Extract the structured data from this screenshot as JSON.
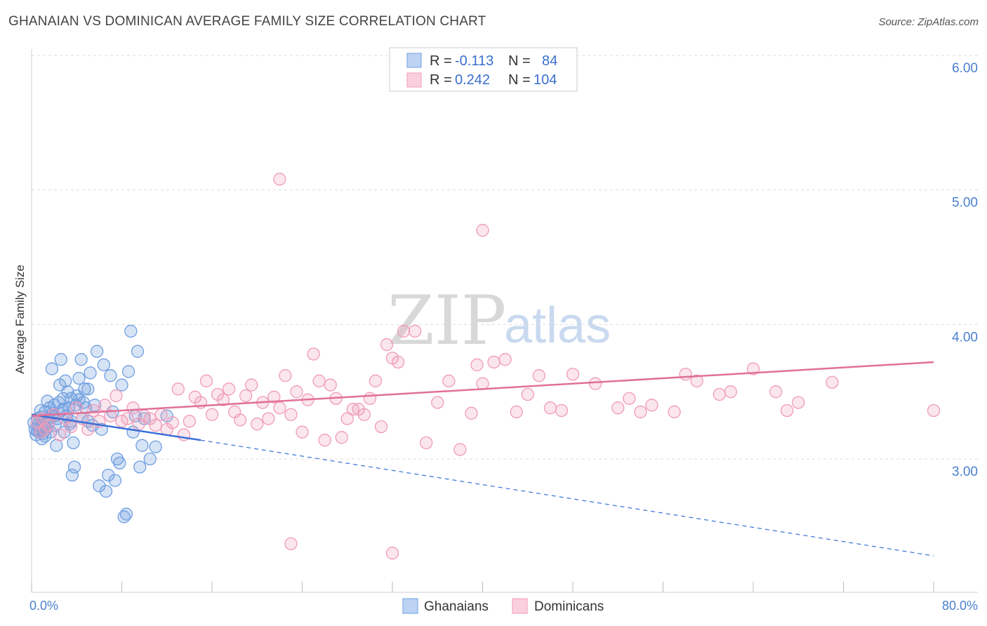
{
  "title": "GHANAIAN VS DOMINICAN AVERAGE FAMILY SIZE CORRELATION CHART",
  "source": "Source: ZipAtlas.com",
  "watermark": {
    "zip": "ZIP",
    "atlas": "atlas"
  },
  "colors": {
    "ghanaian": "#6f9fe0",
    "ghanaian_line": "#3a6fd8",
    "dominican": "#f09bb8",
    "dominican_line": "#e07098",
    "grid": "#dddddd",
    "tick_label": "#4a7fd0"
  },
  "legend": {
    "r_label": "R =",
    "n_label": "N =",
    "ghanaian_r": "-0.113",
    "ghanaian_n": "84",
    "dominican_r": "0.242",
    "dominican_n": "104"
  },
  "chart_data": {
    "type": "scatter",
    "title": "GHANAIAN VS DOMINICAN AVERAGE FAMILY SIZE CORRELATION CHART",
    "xlabel": "",
    "ylabel": "Average Family Size",
    "xlim": [
      0,
      80
    ],
    "ylim": [
      2.2,
      6.1
    ],
    "x_tick_labels": [
      "0.0%",
      "80.0%"
    ],
    "y_ticks": [
      3.0,
      4.0,
      5.0,
      6.0
    ],
    "y_tick_labels": [
      "3.00",
      "4.00",
      "5.00",
      "6.00"
    ],
    "grid": "horizontal dashed",
    "legend_placement": "top-center",
    "series": [
      {
        "name": "Ghanaians",
        "r": -0.113,
        "n": 84,
        "trend": {
          "solid": [
            [
              0,
              3.33
            ],
            [
              15,
              3.14
            ]
          ],
          "dashed": [
            [
              15,
              3.14
            ],
            [
              80,
              2.28
            ]
          ]
        },
        "points": [
          [
            0.2,
            3.27
          ],
          [
            0.3,
            3.22
          ],
          [
            0.4,
            3.18
          ],
          [
            0.5,
            3.3
          ],
          [
            0.6,
            3.25
          ],
          [
            0.7,
            3.2
          ],
          [
            0.8,
            3.31
          ],
          [
            0.9,
            3.15
          ],
          [
            1.0,
            3.28
          ],
          [
            1.1,
            3.24
          ],
          [
            1.2,
            3.35
          ],
          [
            1.3,
            3.22
          ],
          [
            1.4,
            3.43
          ],
          [
            1.5,
            3.3
          ],
          [
            1.6,
            3.38
          ],
          [
            1.7,
            3.2
          ],
          [
            1.8,
            3.67
          ],
          [
            1.9,
            3.34
          ],
          [
            2.0,
            3.4
          ],
          [
            2.1,
            3.25
          ],
          [
            2.2,
            3.1
          ],
          [
            2.3,
            3.3
          ],
          [
            2.4,
            3.42
          ],
          [
            2.5,
            3.55
          ],
          [
            2.6,
            3.74
          ],
          [
            2.7,
            3.36
          ],
          [
            2.8,
            3.45
          ],
          [
            2.9,
            3.2
          ],
          [
            3.0,
            3.58
          ],
          [
            3.1,
            3.32
          ],
          [
            3.2,
            3.5
          ],
          [
            3.3,
            3.38
          ],
          [
            3.4,
            3.26
          ],
          [
            3.5,
            3.45
          ],
          [
            3.6,
            2.88
          ],
          [
            3.7,
            3.12
          ],
          [
            3.8,
            2.94
          ],
          [
            3.9,
            3.4
          ],
          [
            4.0,
            3.47
          ],
          [
            4.2,
            3.6
          ],
          [
            4.4,
            3.74
          ],
          [
            4.5,
            3.3
          ],
          [
            4.6,
            3.42
          ],
          [
            4.7,
            3.52
          ],
          [
            4.8,
            3.38
          ],
          [
            5.0,
            3.28
          ],
          [
            5.2,
            3.64
          ],
          [
            5.4,
            3.25
          ],
          [
            5.6,
            3.4
          ],
          [
            5.8,
            3.8
          ],
          [
            6.0,
            2.8
          ],
          [
            6.2,
            3.22
          ],
          [
            6.4,
            3.7
          ],
          [
            6.6,
            2.76
          ],
          [
            6.8,
            2.88
          ],
          [
            7.0,
            3.62
          ],
          [
            7.2,
            3.35
          ],
          [
            7.4,
            2.84
          ],
          [
            7.6,
            3.0
          ],
          [
            7.8,
            2.97
          ],
          [
            8.0,
            3.55
          ],
          [
            8.2,
            2.57
          ],
          [
            8.4,
            2.59
          ],
          [
            8.6,
            3.65
          ],
          [
            8.8,
            3.95
          ],
          [
            9.0,
            3.2
          ],
          [
            9.2,
            3.32
          ],
          [
            9.4,
            3.8
          ],
          [
            9.6,
            2.94
          ],
          [
            9.8,
            3.1
          ],
          [
            10.0,
            3.3
          ],
          [
            10.5,
            3.0
          ],
          [
            11.0,
            3.09
          ],
          [
            0.5,
            3.21
          ],
          [
            0.8,
            3.36
          ],
          [
            1.2,
            3.17
          ],
          [
            1.5,
            3.27
          ],
          [
            2.0,
            3.32
          ],
          [
            2.8,
            3.37
          ],
          [
            3.5,
            3.28
          ],
          [
            4.2,
            3.44
          ],
          [
            5.0,
            3.52
          ],
          [
            12.0,
            3.32
          ],
          [
            1.0,
            3.19
          ]
        ]
      },
      {
        "name": "Dominicans",
        "r": 0.242,
        "n": 104,
        "trend": {
          "solid": [
            [
              0,
              3.32
            ],
            [
              80,
              3.72
            ]
          ]
        },
        "points": [
          [
            0.5,
            3.27
          ],
          [
            0.8,
            3.2
          ],
          [
            1.0,
            3.3
          ],
          [
            1.2,
            3.22
          ],
          [
            1.5,
            3.25
          ],
          [
            2.0,
            3.33
          ],
          [
            2.5,
            3.18
          ],
          [
            3.0,
            3.3
          ],
          [
            3.5,
            3.24
          ],
          [
            4.0,
            3.38
          ],
          [
            4.5,
            3.3
          ],
          [
            5.0,
            3.22
          ],
          [
            5.5,
            3.36
          ],
          [
            6.0,
            3.28
          ],
          [
            6.5,
            3.4
          ],
          [
            7.0,
            3.32
          ],
          [
            7.5,
            3.47
          ],
          [
            8.0,
            3.28
          ],
          [
            8.5,
            3.3
          ],
          [
            9.0,
            3.38
          ],
          [
            9.5,
            3.26
          ],
          [
            10.0,
            3.32
          ],
          [
            10.5,
            3.3
          ],
          [
            11.0,
            3.25
          ],
          [
            11.5,
            3.33
          ],
          [
            12.0,
            3.22
          ],
          [
            12.5,
            3.27
          ],
          [
            13.0,
            3.52
          ],
          [
            13.5,
            3.18
          ],
          [
            14.0,
            3.28
          ],
          [
            14.5,
            3.46
          ],
          [
            15.0,
            3.42
          ],
          [
            15.5,
            3.58
          ],
          [
            16.0,
            3.33
          ],
          [
            16.5,
            3.48
          ],
          [
            17.0,
            3.44
          ],
          [
            17.5,
            3.52
          ],
          [
            18.0,
            3.35
          ],
          [
            18.5,
            3.29
          ],
          [
            19.0,
            3.47
          ],
          [
            19.5,
            3.55
          ],
          [
            20.0,
            3.26
          ],
          [
            20.5,
            3.42
          ],
          [
            21.0,
            3.3
          ],
          [
            21.5,
            3.46
          ],
          [
            22.0,
            3.38
          ],
          [
            22.5,
            3.62
          ],
          [
            23.0,
            3.33
          ],
          [
            23.5,
            3.5
          ],
          [
            24.0,
            3.2
          ],
          [
            24.5,
            3.44
          ],
          [
            25.0,
            3.78
          ],
          [
            25.5,
            3.58
          ],
          [
            26.0,
            3.14
          ],
          [
            26.5,
            3.55
          ],
          [
            27.0,
            3.45
          ],
          [
            27.5,
            3.16
          ],
          [
            28.0,
            3.3
          ],
          [
            28.5,
            3.37
          ],
          [
            29.0,
            3.37
          ],
          [
            29.5,
            3.33
          ],
          [
            30.0,
            3.45
          ],
          [
            30.5,
            3.58
          ],
          [
            31.0,
            3.24
          ],
          [
            31.5,
            3.85
          ],
          [
            32.0,
            3.75
          ],
          [
            32.5,
            3.72
          ],
          [
            33.0,
            3.95
          ],
          [
            34.0,
            3.95
          ],
          [
            35.0,
            3.12
          ],
          [
            36.0,
            3.42
          ],
          [
            37.0,
            3.58
          ],
          [
            38.0,
            3.07
          ],
          [
            39.0,
            3.34
          ],
          [
            39.5,
            3.7
          ],
          [
            40.0,
            3.56
          ],
          [
            41.0,
            3.72
          ],
          [
            42.0,
            3.74
          ],
          [
            43.0,
            3.35
          ],
          [
            44.0,
            3.48
          ],
          [
            45.0,
            3.62
          ],
          [
            46.0,
            3.38
          ],
          [
            47.0,
            3.36
          ],
          [
            48.0,
            3.63
          ],
          [
            50.0,
            3.56
          ],
          [
            52.0,
            3.38
          ],
          [
            53.0,
            3.45
          ],
          [
            54.0,
            3.35
          ],
          [
            55.0,
            3.4
          ],
          [
            57.0,
            3.35
          ],
          [
            58.0,
            3.63
          ],
          [
            59.0,
            3.58
          ],
          [
            61.0,
            3.48
          ],
          [
            62.0,
            3.5
          ],
          [
            64.0,
            3.67
          ],
          [
            66.0,
            3.5
          ],
          [
            67.0,
            3.36
          ],
          [
            68.0,
            3.42
          ],
          [
            71.0,
            3.57
          ],
          [
            80.0,
            3.36
          ],
          [
            22.0,
            5.08
          ],
          [
            40.0,
            4.7
          ],
          [
            23.0,
            2.37
          ],
          [
            32.0,
            2.3
          ]
        ]
      }
    ]
  }
}
